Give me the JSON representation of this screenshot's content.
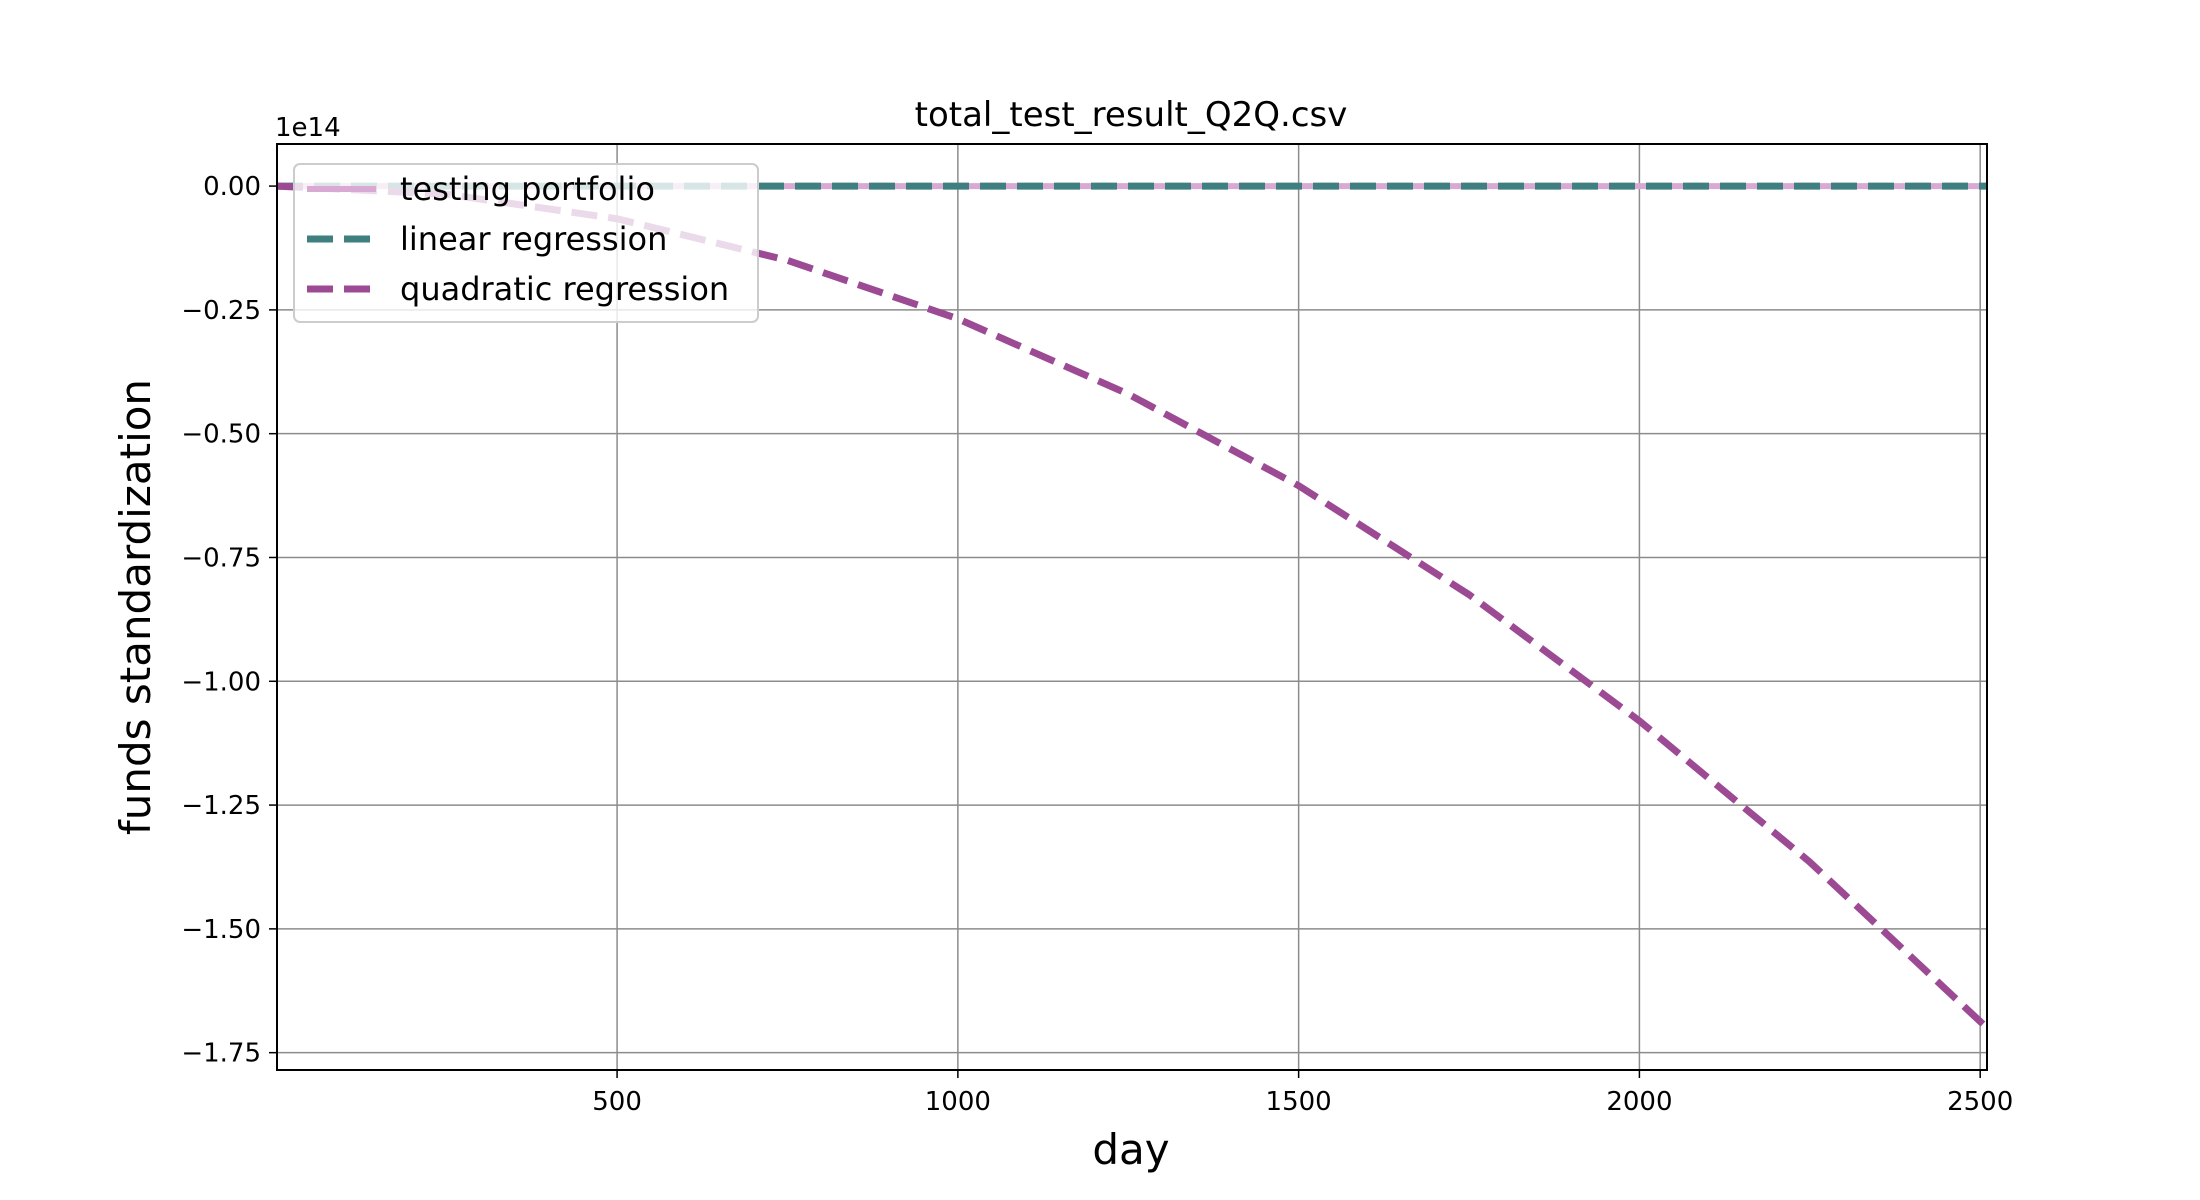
{
  "chart_data": {
    "type": "line",
    "title": "total_test_result_Q2Q.csv",
    "xlabel": "day",
    "ylabel": "funds standardization",
    "y_offset_label": "1e14",
    "y_scale": 100000000000000.0,
    "xlim": [
      1,
      2510
    ],
    "ylim": [
      -178500000000000.0,
      8500000000000.0
    ],
    "xticks": [
      500,
      1000,
      1500,
      2000,
      2500
    ],
    "xtick_labels": [
      "500",
      "1000",
      "1500",
      "2000",
      "2500"
    ],
    "yticks": [
      0,
      -25000000000000.0,
      -50000000000000.0,
      -75000000000000.0,
      -100000000000000.0,
      -125000000000000.0,
      -150000000000000.0,
      -175000000000000.0
    ],
    "ytick_labels": [
      "0.00",
      "−0.25",
      "−0.50",
      "−0.75",
      "−1.00",
      "−1.25",
      "−1.50",
      "−1.75"
    ],
    "grid": true,
    "legend_position": "top-left",
    "series": [
      {
        "name": "testing portfolio",
        "color": "#d8a9d2",
        "style": "solid",
        "x": [
          1,
          500,
          1000,
          1500,
          2000,
          2510
        ],
        "y": [
          0,
          0,
          0,
          0,
          0,
          0
        ]
      },
      {
        "name": "linear regression",
        "color": "#3f7f7f",
        "style": "dashed",
        "x": [
          1,
          500,
          1000,
          1500,
          2000,
          2510
        ],
        "y": [
          0,
          0,
          0,
          0,
          0,
          0
        ]
      },
      {
        "name": "quadratic regression",
        "color": "#9c4a94",
        "style": "dashed",
        "x": [
          1,
          250,
          500,
          750,
          1000,
          1250,
          1500,
          1750,
          2000,
          2250,
          2510
        ],
        "y": [
          0,
          -1650000000000.0,
          -6600000000000.0,
          -15000000000000.0,
          -26800000000000.0,
          -42000000000000.0,
          -60500000000000.0,
          -82500000000000.0,
          -108000000000000.0,
          -136500000000000.0,
          -170000000000000.0
        ]
      }
    ]
  }
}
